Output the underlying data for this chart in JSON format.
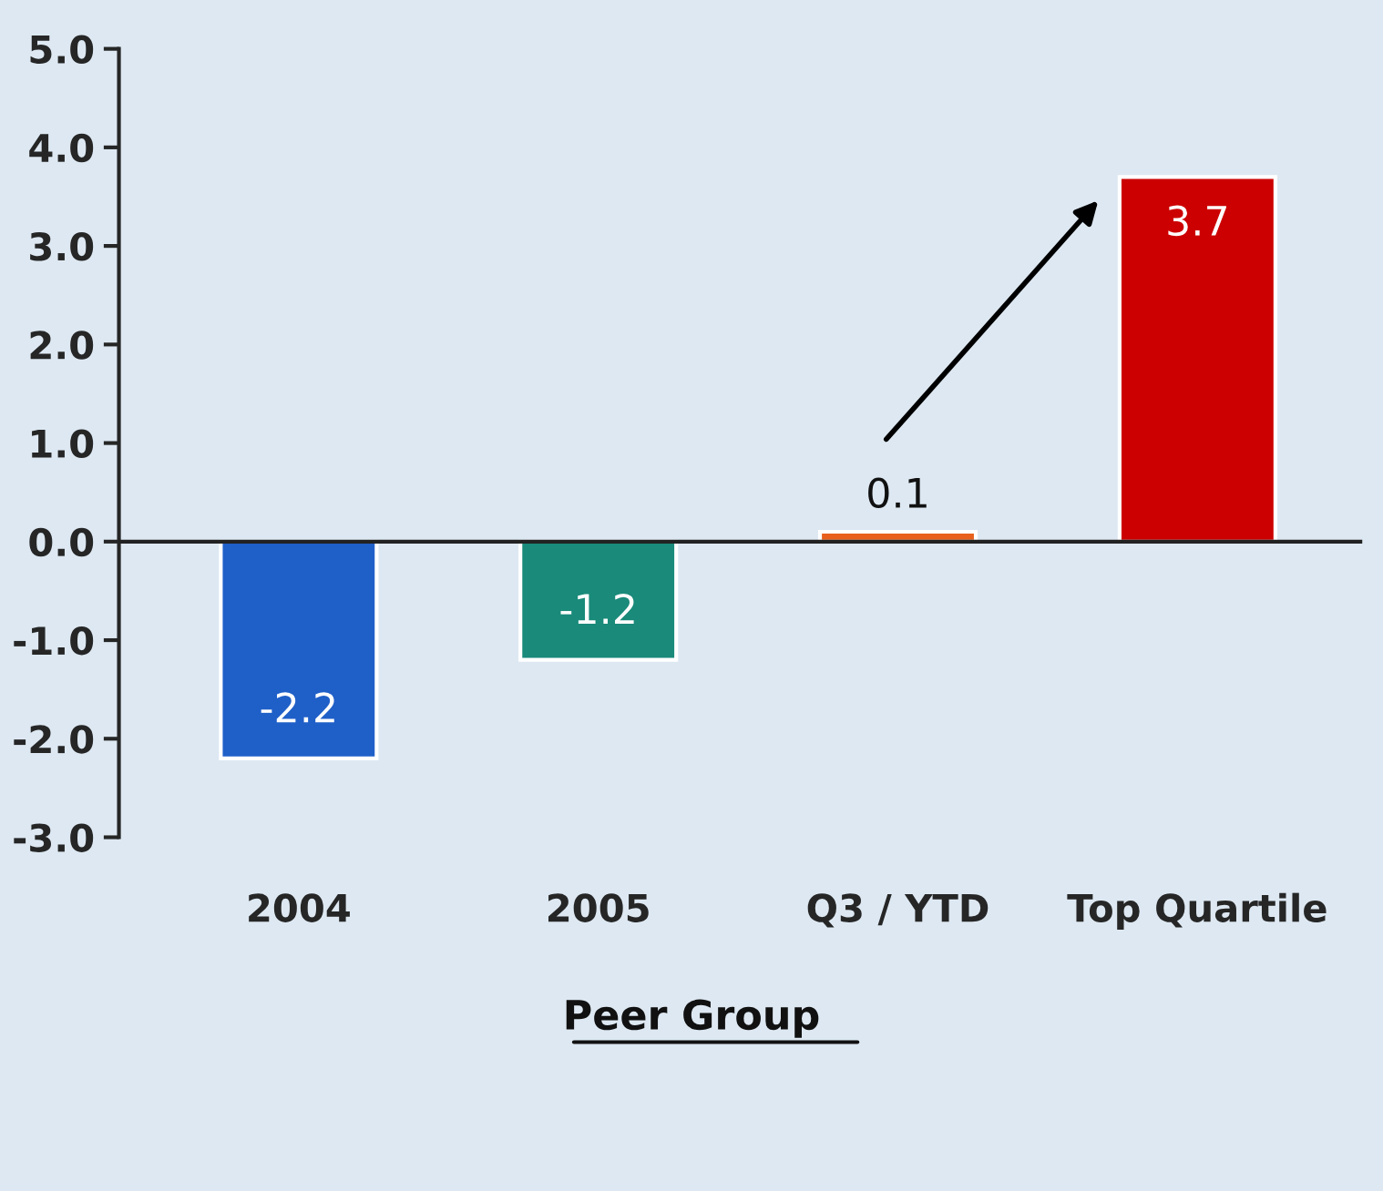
{
  "chart_data": {
    "type": "bar",
    "categories": [
      "2004",
      "2005",
      "Q3 / YTD",
      "Top Quartile"
    ],
    "values": [
      -2.2,
      -1.2,
      0.1,
      3.7
    ],
    "colors": [
      "#1f5fc8",
      "#1a8a7a",
      "#e8601c",
      "#cc0000"
    ],
    "ylim": [
      -3.0,
      5.0
    ],
    "yticks": [
      {
        "value": -3,
        "label": "-3.0"
      },
      {
        "value": -2,
        "label": "-2.0"
      },
      {
        "value": -1,
        "label": "-1.0"
      },
      {
        "value": 0,
        "label": "0.0"
      },
      {
        "value": 1,
        "label": "1.0"
      },
      {
        "value": 2,
        "label": "2.0"
      },
      {
        "value": 3,
        "label": "3.0"
      },
      {
        "value": 4,
        "label": "4.0"
      },
      {
        "value": 5,
        "label": "5.0"
      }
    ],
    "data_labels": true,
    "grid": false,
    "ref_lines": [
      {
        "axis": "y",
        "value": 0,
        "color": "#222222"
      }
    ],
    "annotations": [
      "Peer Group"
    ]
  }
}
